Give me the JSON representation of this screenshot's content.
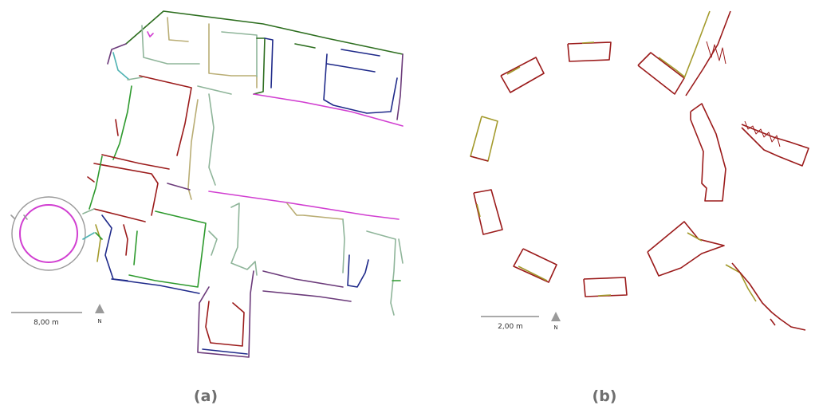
{
  "panel_a": {
    "scale_label": "8,00 m",
    "north_label": "N",
    "caption": "(a)"
  },
  "panel_b": {
    "scale_label": "2,00 m",
    "north_label": "N",
    "caption": "(b)"
  },
  "colors": {
    "red": "#9b1b1b",
    "olive": "#a39a2c",
    "green": "#2e9a2e",
    "dark_green": "#2d6e1f",
    "navy": "#1f2a8a",
    "magenta": "#d13fd1",
    "teal": "#4fb3b3",
    "tan": "#b9ad74",
    "sage": "#8fb59a",
    "purple": "#6b3a7a",
    "gray": "#9a9a9a"
  }
}
